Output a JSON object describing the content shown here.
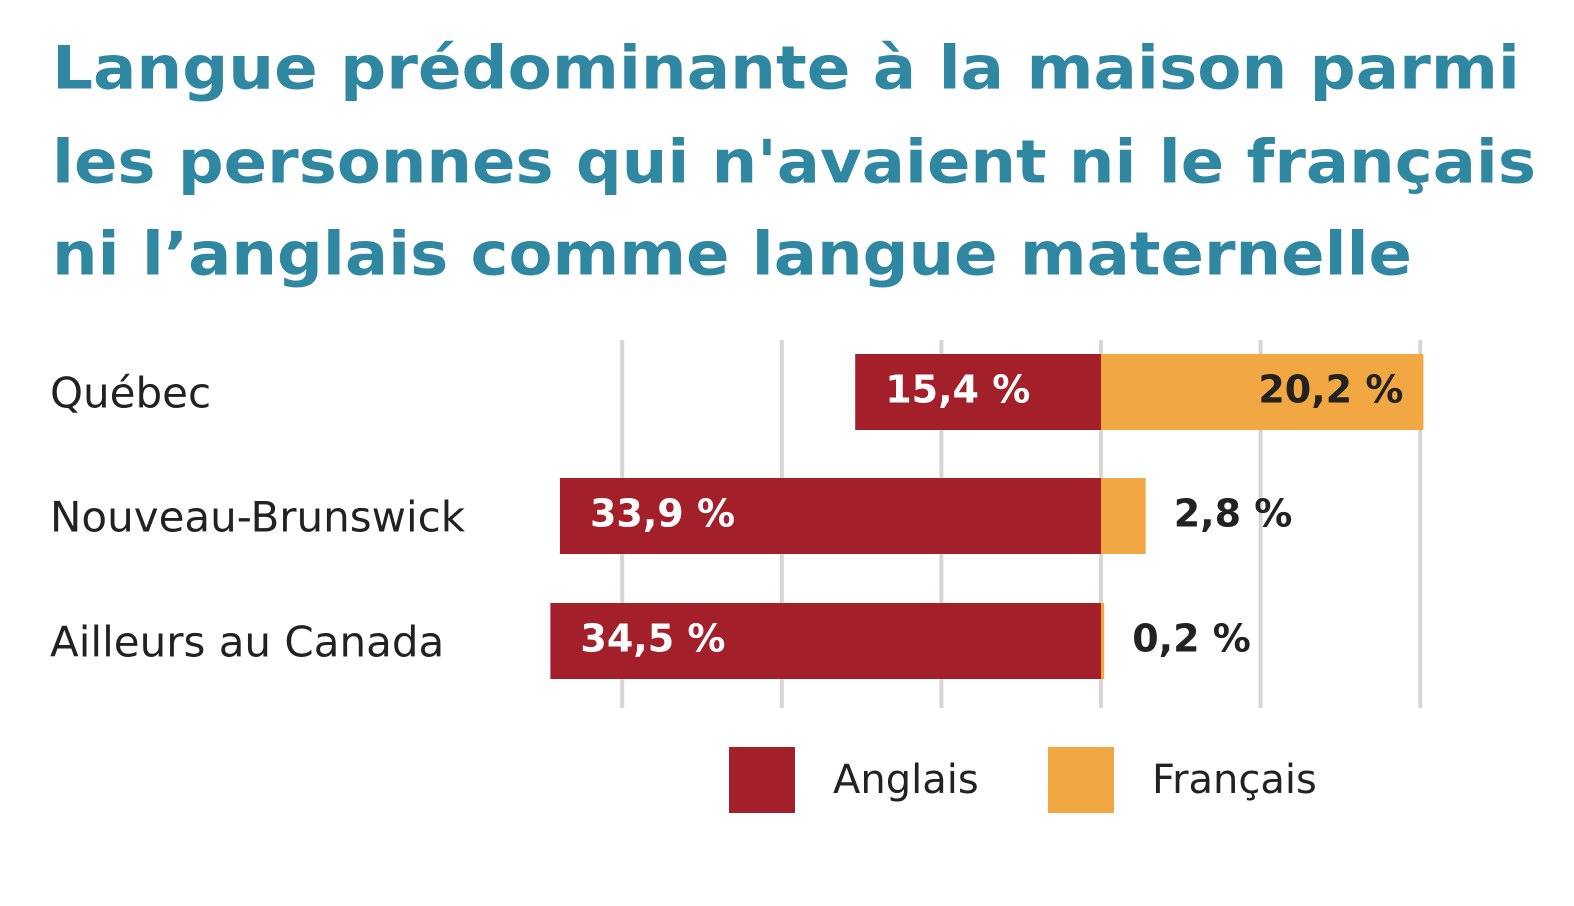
{
  "chart_data": {
    "type": "diverging_bar",
    "title": [
      "Langue prédominante à la maison parmi",
      "les personnes qui n'avaient ni le français",
      "ni l’anglais comme langue maternelle"
    ],
    "categories": [
      "Québec",
      "Nouveau-Brunswick",
      "Ailleurs au Canada"
    ],
    "series": [
      {
        "name": "Anglais",
        "color": "#a3202b",
        "values": [
          15.4,
          33.9,
          34.5
        ],
        "value_labels": [
          "15,4 %",
          "33,9 %",
          "34,5 %"
        ]
      },
      {
        "name": "Français",
        "color": "#f1a842",
        "values": [
          20.2,
          2.8,
          0.2
        ],
        "value_labels": [
          "20,2 %",
          "2,8 %",
          "0,2 %"
        ]
      }
    ],
    "xlim": [
      -35,
      20
    ],
    "xticks": [
      -30,
      -20,
      -10,
      0,
      10,
      20
    ],
    "grid": true,
    "legend": "bottom"
  }
}
